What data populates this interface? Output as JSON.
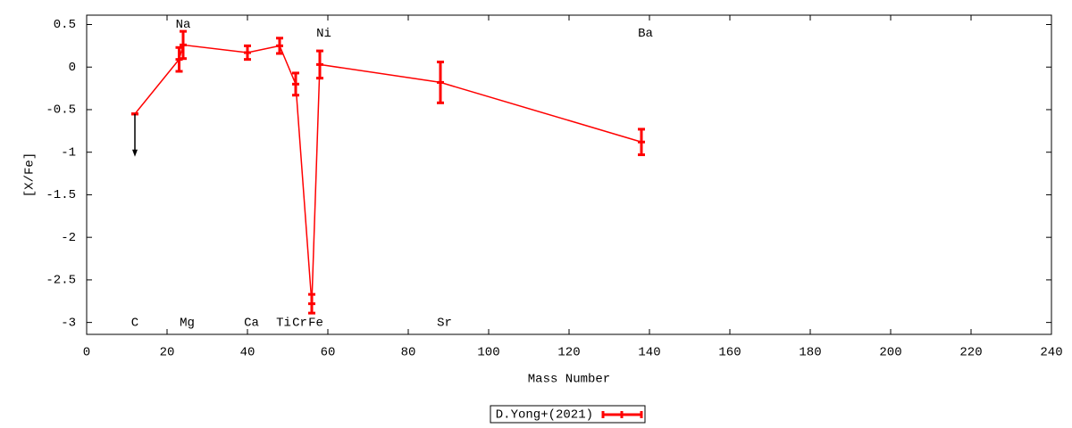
{
  "chart_data": {
    "type": "errorbar-line",
    "xlabel": "Mass Number",
    "ylabel": "[X/Fe]",
    "xlim": [
      0,
      240
    ],
    "ylim": [
      -3.14,
      0.61
    ],
    "xticks": [
      0,
      20,
      40,
      60,
      80,
      100,
      120,
      140,
      160,
      180,
      200,
      220,
      240
    ],
    "yticks": [
      0.5,
      0,
      -0.5,
      -1,
      -1.5,
      -2,
      -2.5,
      -3
    ],
    "legend": "bottom",
    "series": [
      {
        "name": "D.Yong+(2021)",
        "color": "#ff0000",
        "x": [
          12,
          23,
          24,
          40,
          48,
          52,
          56,
          58,
          88,
          138
        ],
        "values": [
          -0.55,
          0.09,
          0.26,
          0.17,
          0.25,
          -0.2,
          -2.78,
          0.03,
          -0.18,
          -0.88
        ],
        "errors": [
          0,
          0.14,
          0.16,
          0.08,
          0.09,
          0.13,
          0.11,
          0.16,
          0.24,
          0.15
        ],
        "upper_limit": [
          true,
          false,
          false,
          false,
          false,
          false,
          false,
          false,
          false,
          false
        ]
      }
    ],
    "element_labels": [
      {
        "text": "C",
        "x": 12,
        "y": -3
      },
      {
        "text": "Na",
        "x": 24,
        "y": 0.5
      },
      {
        "text": "Mg",
        "x": 25,
        "y": -3
      },
      {
        "text": "Ca",
        "x": 41,
        "y": -3
      },
      {
        "text": "Ti",
        "x": 49,
        "y": -3
      },
      {
        "text": "Cr",
        "x": 53,
        "y": -3
      },
      {
        "text": "Fe",
        "x": 57,
        "y": -3
      },
      {
        "text": "Ni",
        "x": 59,
        "y": 0.4
      },
      {
        "text": "Sr",
        "x": 89,
        "y": -3
      },
      {
        "text": "Ba",
        "x": 139,
        "y": 0.4
      }
    ]
  }
}
